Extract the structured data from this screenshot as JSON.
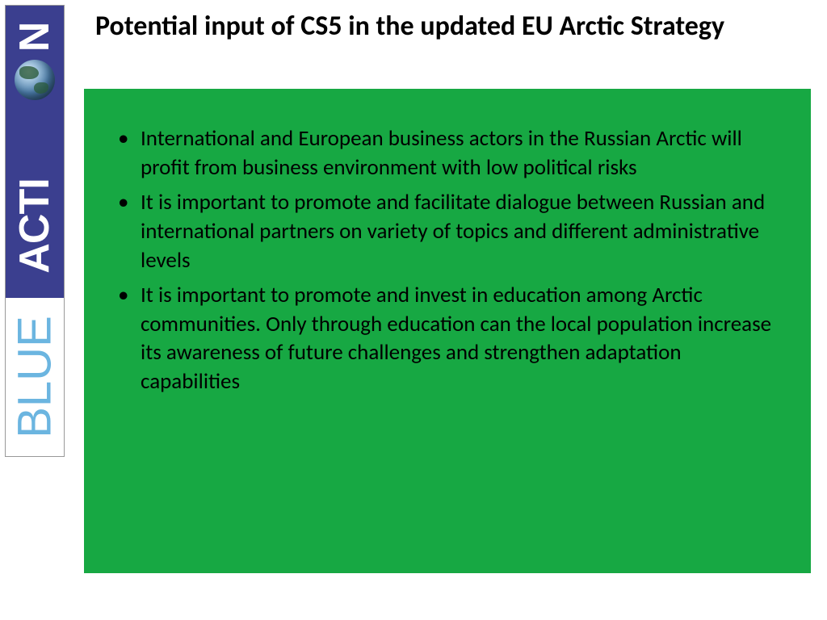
{
  "logo": {
    "word_blue": "BLUE",
    "word_action_pre": "ACTI",
    "word_action_post": "N",
    "blue_text_color": "#6bb5e0",
    "action_bg": "#3b3f8f",
    "action_text_color": "#ffffff"
  },
  "slide": {
    "title": "Potential input of CS5 in the updated EU Arctic Strategy",
    "title_color": "#000000",
    "title_fontsize": 34,
    "background": "#ffffff",
    "content_box": {
      "bg_color": "#17a843",
      "text_color": "#000000",
      "fontsize": 27,
      "bullets": [
        "International and European business actors in the Russian Arctic will profit from business environment with low political risks",
        "It is important  to promote and facilitate dialogue between Russian and international partners on variety of topics and different administrative levels",
        "It is important to promote and invest in education among Arctic communities. Only through education can the local population increase its awareness of future challenges and strengthen adaptation capabilities"
      ]
    }
  }
}
